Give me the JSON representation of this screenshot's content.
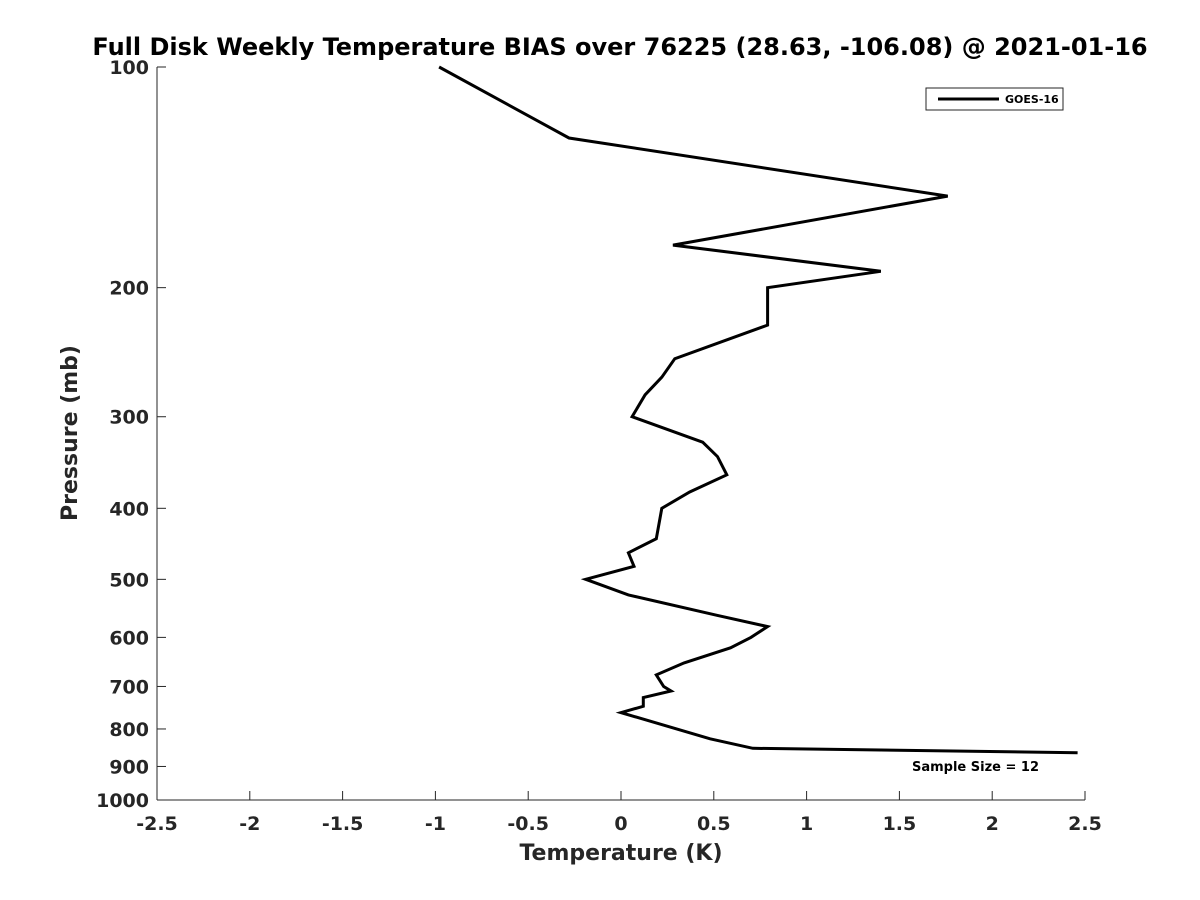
{
  "chart_data": {
    "type": "line",
    "title": "Full Disk Weekly Temperature BIAS over 76225 (28.63, -106.08) @ 2021-01-16",
    "xlabel": "Temperature (K)",
    "ylabel": "Pressure (mb)",
    "xlim": [
      -2.5,
      2.5
    ],
    "ylim": [
      100,
      1000
    ],
    "y_scale": "log",
    "y_reversed": true,
    "x_ticks": [
      -2.5,
      -2,
      -1.5,
      -1,
      -0.5,
      0,
      0.5,
      1,
      1.5,
      2,
      2.5
    ],
    "x_tick_labels": [
      "-2.5",
      "-2",
      "-1.5",
      "-1",
      "-0.5",
      "0",
      "0.5",
      "1",
      "1.5",
      "2",
      "2.5"
    ],
    "y_ticks": [
      100,
      200,
      300,
      400,
      500,
      600,
      700,
      800,
      900,
      1000
    ],
    "y_tick_labels": [
      "100",
      "200",
      "300",
      "400",
      "500",
      "600",
      "700",
      "800",
      "900",
      "1000"
    ],
    "grid": false,
    "legend_position": "top-right",
    "series": [
      {
        "name": "GOES-16",
        "color": "#000000",
        "x": [
          -0.98,
          -0.28,
          1.76,
          0.28,
          1.4,
          0.79,
          0.79,
          0.29,
          0.22,
          0.13,
          0.06,
          0.44,
          0.52,
          0.57,
          0.37,
          0.22,
          0.19,
          0.04,
          0.07,
          -0.19,
          0.04,
          0.52,
          0.79,
          0.7,
          0.59,
          0.34,
          0.19,
          0.23,
          0.27,
          0.12,
          0.12,
          0.0,
          0.48,
          0.71,
          2.46
        ],
        "y": [
          100,
          125,
          150,
          175,
          190,
          200,
          225,
          250,
          265,
          280,
          300,
          325,
          340,
          360,
          380,
          400,
          440,
          460,
          480,
          500,
          525,
          560,
          580,
          600,
          620,
          650,
          675,
          700,
          710,
          725,
          745,
          760,
          825,
          850,
          862
        ]
      }
    ],
    "annotations": [
      "Sample Size = 12"
    ]
  }
}
